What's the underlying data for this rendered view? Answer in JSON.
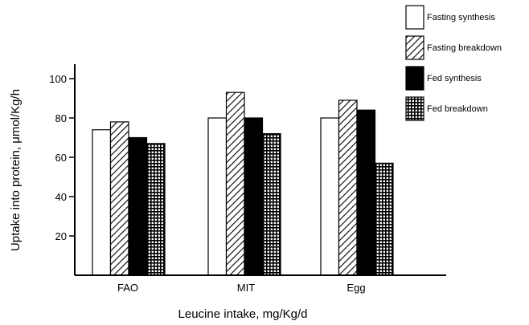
{
  "chart_data": {
    "type": "bar",
    "categories": [
      "FAO",
      "MIT",
      "Egg"
    ],
    "series": [
      {
        "name": "Fasting synthesis",
        "values": [
          74,
          80,
          80
        ],
        "pattern": "white"
      },
      {
        "name": "Fasting breakdown",
        "values": [
          78,
          93,
          89
        ],
        "pattern": "hatch"
      },
      {
        "name": "Fed synthesis",
        "values": [
          70,
          80,
          84
        ],
        "pattern": "black"
      },
      {
        "name": "Fed breakdown",
        "values": [
          67,
          72,
          57
        ],
        "pattern": "grid"
      }
    ],
    "xlabel": "Leucine intake, mg/Kg/d",
    "ylabel": "Uptake into protein, μmol/Kg/h",
    "ylim": [
      0,
      110
    ],
    "yticks": [
      20,
      40,
      60,
      80,
      100
    ],
    "legend_position": "top-right",
    "grid": false,
    "colors": {
      "ink": "#000000",
      "background": "#ffffff"
    }
  }
}
